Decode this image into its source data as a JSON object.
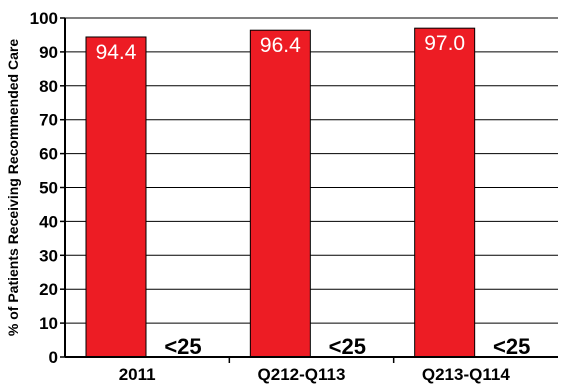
{
  "chart_data": {
    "type": "bar",
    "title": "",
    "ylabel": "% of Patients Receiving Recommended Care",
    "xlabel": "",
    "ylim": [
      0,
      100
    ],
    "yticks": [
      "0",
      "10",
      "20",
      "30",
      "40",
      "50",
      "60",
      "70",
      "80",
      "90",
      "100"
    ],
    "grid": true,
    "categories": [
      "2011",
      "Q212-Q113",
      "Q213-Q114"
    ],
    "values": [
      94.4,
      96.4,
      97.0
    ],
    "value_labels": [
      "94.4",
      "96.4",
      "97.0"
    ],
    "suppressed_labels": [
      "<25",
      "<25",
      "<25"
    ],
    "bar_color": "#ed1c24"
  }
}
